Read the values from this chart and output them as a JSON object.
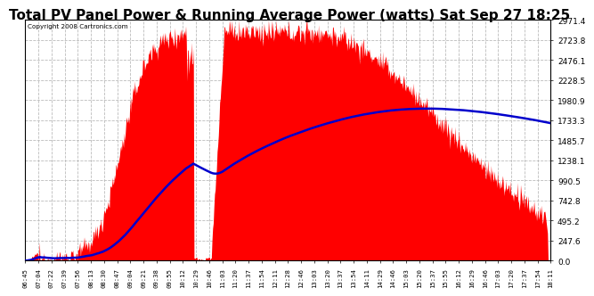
{
  "title": "Total PV Panel Power & Running Average Power (watts) Sat Sep 27 18:25",
  "copyright": "Copyright 2008 Cartronics.com",
  "title_fontsize": 11,
  "background_color": "#ffffff",
  "plot_bg_color": "#ffffff",
  "grid_color": "#bbbbbb",
  "fill_color": "#ff0000",
  "line_color": "#0000cc",
  "ymax": 2971.4,
  "ymin": 0.0,
  "yticks": [
    0.0,
    247.6,
    495.2,
    742.8,
    990.5,
    1238.1,
    1485.7,
    1733.3,
    1980.9,
    2228.5,
    2476.1,
    2723.8,
    2971.4
  ],
  "xtick_labels": [
    "06:45",
    "07:04",
    "07:22",
    "07:39",
    "07:56",
    "08:13",
    "08:30",
    "08:47",
    "09:04",
    "09:21",
    "09:38",
    "09:55",
    "10:12",
    "10:29",
    "10:46",
    "11:03",
    "11:20",
    "11:37",
    "11:54",
    "12:11",
    "12:28",
    "12:46",
    "13:03",
    "13:20",
    "13:37",
    "13:54",
    "14:11",
    "14:29",
    "14:46",
    "15:03",
    "15:20",
    "15:37",
    "15:55",
    "16:12",
    "16:29",
    "16:46",
    "17:03",
    "17:20",
    "17:37",
    "17:54",
    "18:11"
  ],
  "n_points": 820
}
